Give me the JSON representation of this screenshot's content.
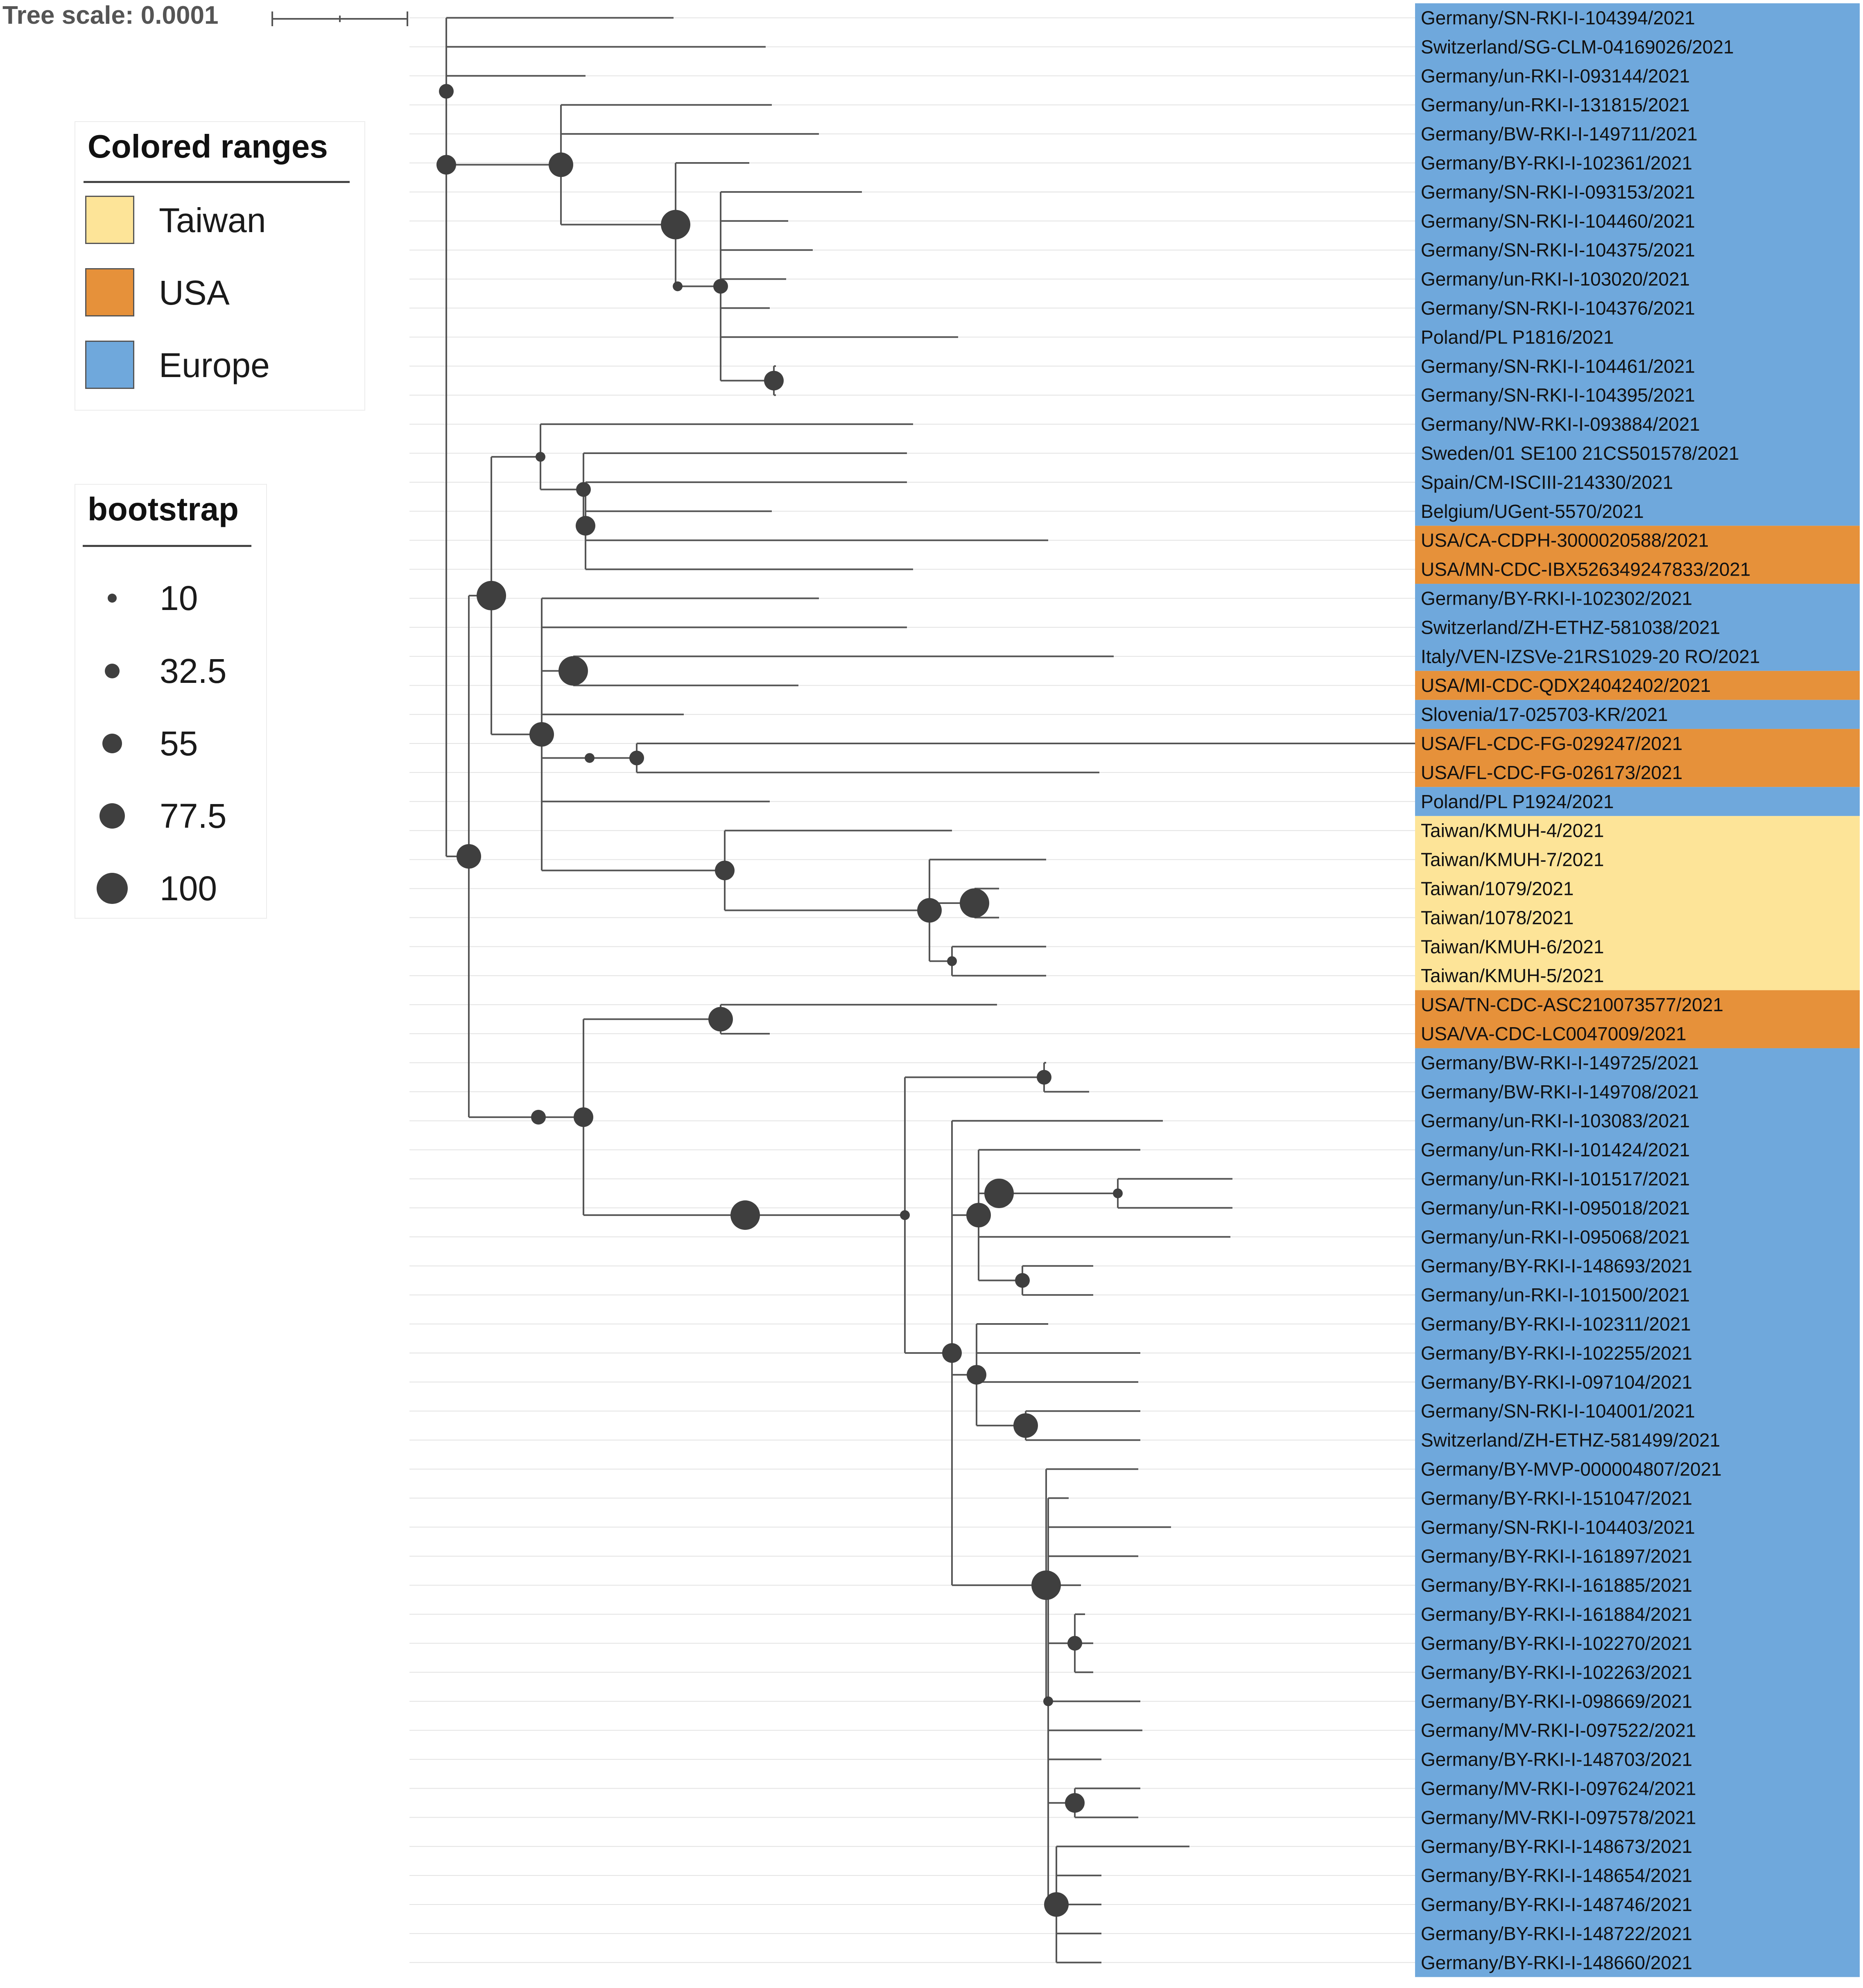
{
  "tree_scale": {
    "label": "Tree scale: 0.0001"
  },
  "legend_ranges": {
    "title": "Colored ranges",
    "items": [
      {
        "label": "Taiwan",
        "color": "#fde498"
      },
      {
        "label": "USA",
        "color": "#e6913a"
      },
      {
        "label": "Europe",
        "color": "#6fa8dc"
      }
    ]
  },
  "legend_bootstrap": {
    "title": "bootstrap",
    "items": [
      {
        "label": "10",
        "value": 10
      },
      {
        "label": "32.5",
        "value": 32.5
      },
      {
        "label": "55",
        "value": 55
      },
      {
        "label": "77.5",
        "value": 77.5
      },
      {
        "label": "100",
        "value": 100
      }
    ]
  },
  "tips": [
    "Germany/SN-RKI-I-104394/2021",
    "Switzerland/SG-CLM-04169026/2021",
    "Germany/un-RKI-I-093144/2021",
    "Germany/un-RKI-I-131815/2021",
    "Germany/BW-RKI-I-149711/2021",
    "Germany/BY-RKI-I-102361/2021",
    "Germany/SN-RKI-I-093153/2021",
    "Germany/SN-RKI-I-104460/2021",
    "Germany/SN-RKI-I-104375/2021",
    "Germany/un-RKI-I-103020/2021",
    "Germany/SN-RKI-I-104376/2021",
    "Poland/PL P1816/2021",
    "Germany/SN-RKI-I-104461/2021",
    "Germany/SN-RKI-I-104395/2021",
    "Germany/NW-RKI-I-093884/2021",
    "Sweden/01 SE100 21CS501578/2021",
    "Spain/CM-ISCIII-214330/2021",
    "Belgium/UGent-5570/2021",
    "USA/CA-CDPH-3000020588/2021",
    "USA/MN-CDC-IBX526349247833/2021",
    "Germany/BY-RKI-I-102302/2021",
    "Switzerland/ZH-ETHZ-581038/2021",
    "Italy/VEN-IZSVe-21RS1029-20 RO/2021",
    "USA/MI-CDC-QDX24042402/2021",
    "Slovenia/17-025703-KR/2021",
    "USA/FL-CDC-FG-029247/2021",
    "USA/FL-CDC-FG-026173/2021",
    "Poland/PL P1924/2021",
    "Taiwan/KMUH-4/2021",
    "Taiwan/KMUH-7/2021",
    "Taiwan/1079/2021",
    "Taiwan/1078/2021",
    "Taiwan/KMUH-6/2021",
    "Taiwan/KMUH-5/2021",
    "USA/TN-CDC-ASC210073577/2021",
    "USA/VA-CDC-LC0047009/2021",
    "Germany/BW-RKI-I-149725/2021",
    "Germany/BW-RKI-I-149708/2021",
    "Germany/un-RKI-I-103083/2021",
    "Germany/un-RKI-I-101424/2021",
    "Germany/un-RKI-I-101517/2021",
    "Germany/un-RKI-I-095018/2021",
    "Germany/un-RKI-I-095068/2021",
    "Germany/BY-RKI-I-148693/2021",
    "Germany/un-RKI-I-101500/2021",
    "Germany/BY-RKI-I-102311/2021",
    "Germany/BY-RKI-I-102255/2021",
    "Germany/BY-RKI-I-097104/2021",
    "Germany/SN-RKI-I-104001/2021",
    "Switzerland/ZH-ETHZ-581499/2021",
    "Germany/BY-MVP-000004807/2021",
    "Germany/BY-RKI-I-151047/2021",
    "Germany/SN-RKI-I-104403/2021",
    "Germany/BY-RKI-I-161897/2021",
    "Germany/BY-RKI-I-161885/2021",
    "Germany/BY-RKI-I-161884/2021",
    "Germany/BY-RKI-I-102270/2021",
    "Germany/BY-RKI-I-102263/2021",
    "Germany/BY-RKI-I-098669/2021",
    "Germany/MV-RKI-I-097522/2021",
    "Germany/BY-RKI-I-148703/2021",
    "Germany/MV-RKI-I-097624/2021",
    "Germany/MV-RKI-I-097578/2021",
    "Germany/BY-RKI-I-148673/2021",
    "Germany/BY-RKI-I-148654/2021",
    "Germany/BY-RKI-I-148746/2021",
    "Germany/BY-RKI-I-148722/2021",
    "Germany/BY-RKI-I-148660/2021"
  ]
}
